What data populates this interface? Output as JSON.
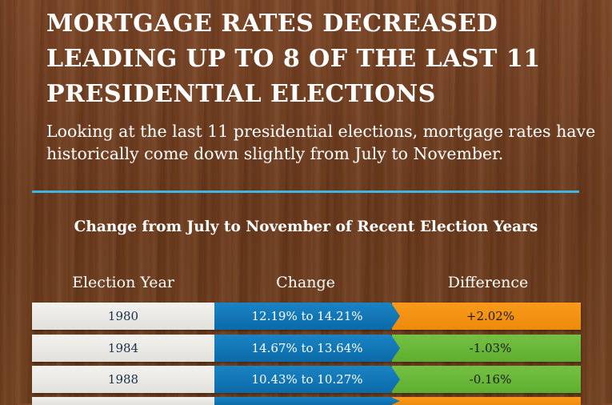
{
  "headline": {
    "line1": "MORTGAGE RATES DECREASED",
    "line2": "LEADING UP TO 8 OF THE LAST 11",
    "line3": "PRESIDENTIAL ELECTIONS"
  },
  "subtext": "Looking at the last 11 presidential elections, mortgage rates have historically come down slightly from July to November.",
  "colors": {
    "divider": "#3fb6e0",
    "change_cell": "#0c6aa8",
    "increase": "#ee8a0c",
    "decrease": "#5fae2f"
  },
  "table": {
    "title": "Change from July to November of Recent Election Years",
    "headers": {
      "year": "Election Year",
      "change": "Change",
      "difference": "Difference"
    },
    "rows": [
      {
        "year": "1980",
        "change": "12.19% to 14.21%",
        "difference": "+2.02%",
        "direction": "increase"
      },
      {
        "year": "1984",
        "change": "14.67% to 13.64%",
        "difference": "-1.03%",
        "direction": "decrease"
      },
      {
        "year": "1988",
        "change": "10.43% to 10.27%",
        "difference": "-0.16%",
        "direction": "decrease"
      }
    ]
  }
}
